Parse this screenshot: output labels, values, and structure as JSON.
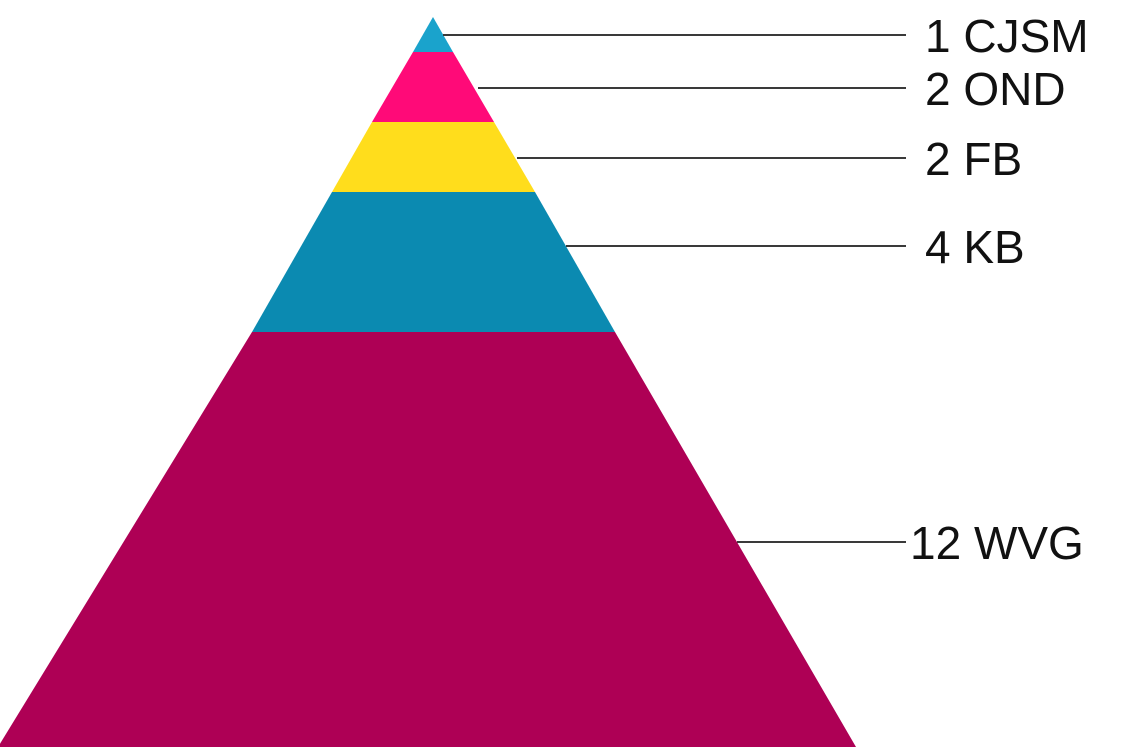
{
  "diagram": {
    "type": "pyramid",
    "tiers": [
      {
        "label": "1 CJSM",
        "color": "#1aa3cc"
      },
      {
        "label": "2 OND",
        "color": "#ff0a78"
      },
      {
        "label": "2 FB",
        "color": "#ffdd1c"
      },
      {
        "label": "4 KB",
        "color": "#0b8ab1"
      },
      {
        "label": "12 WVG",
        "color": "#ae0055"
      }
    ]
  }
}
